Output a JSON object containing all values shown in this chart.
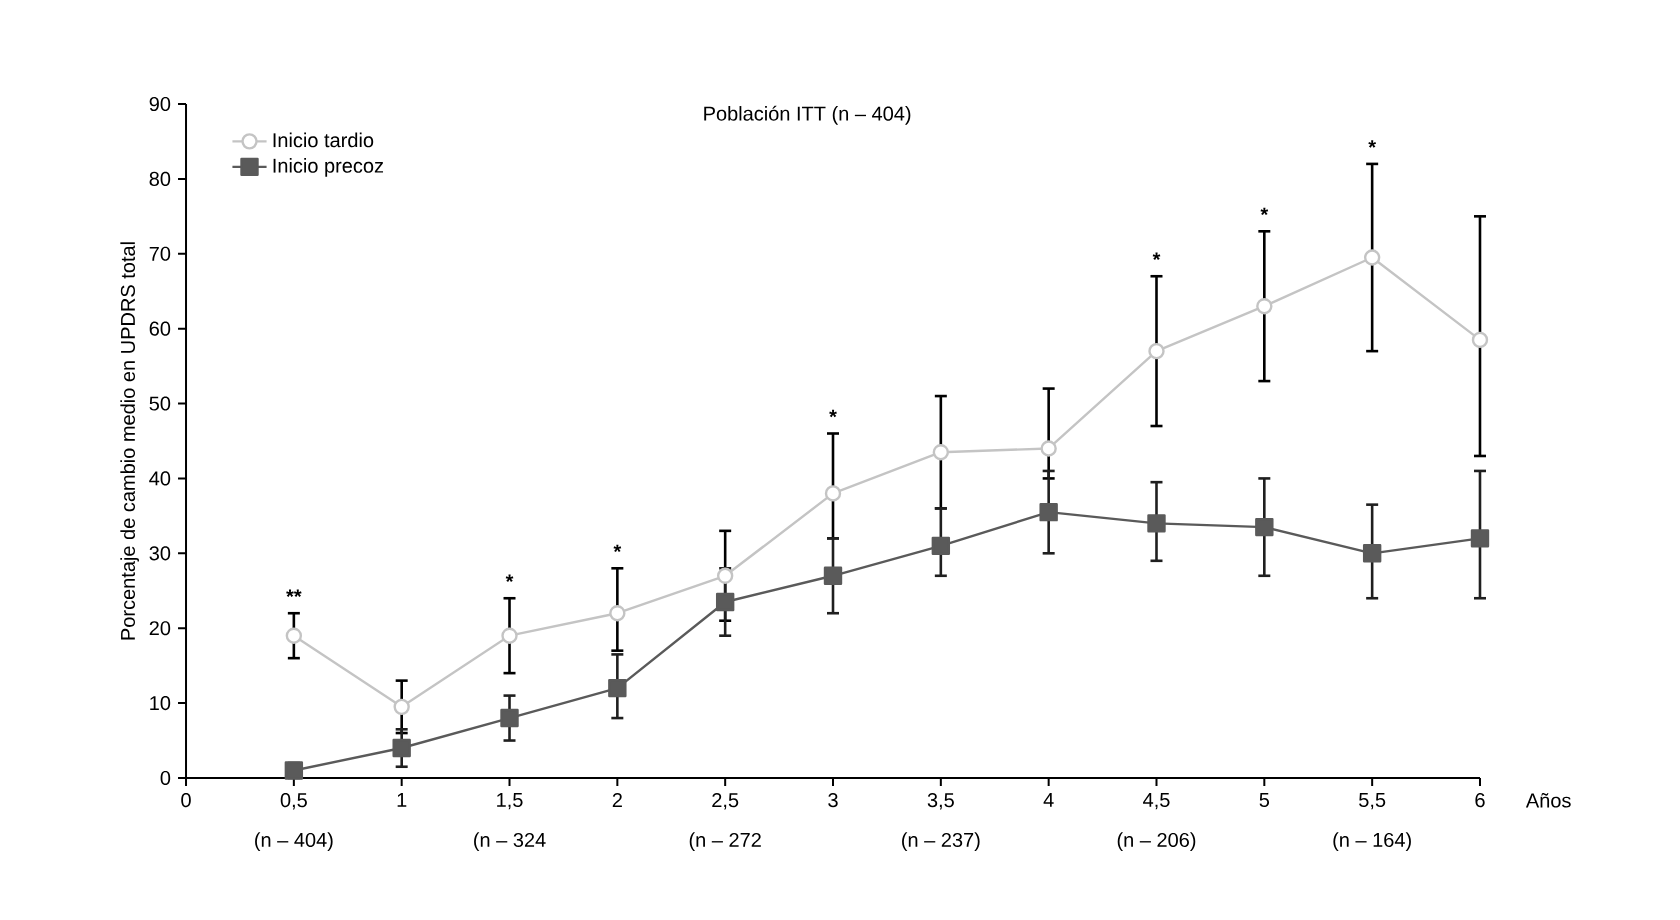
{
  "chart_data": {
    "type": "line",
    "title": "Población ITT (n – 404)",
    "xlabel": "Años",
    "ylabel": "Porcentaje de cambio medio en UPDRS total",
    "x": [
      0.5,
      1,
      1.5,
      2,
      2.5,
      3,
      3.5,
      4,
      4.5,
      5,
      5.5,
      6
    ],
    "series": [
      {
        "name": "Inicio tardio",
        "color": "#c4c4c4",
        "marker": "circle",
        "values": [
          19,
          9.5,
          19,
          22,
          27,
          38,
          43.5,
          44,
          57,
          63,
          69.5,
          58.5
        ],
        "errors": [
          [
            16,
            22
          ],
          [
            6,
            13
          ],
          [
            14,
            24
          ],
          [
            17,
            28
          ],
          [
            21,
            33
          ],
          [
            32,
            46
          ],
          [
            36,
            51
          ],
          [
            40,
            52
          ],
          [
            47,
            67
          ],
          [
            53,
            73
          ],
          [
            57,
            82
          ],
          [
            43,
            75
          ]
        ]
      },
      {
        "name": "Inicio precoz",
        "color": "#5a5a5a",
        "marker": "square",
        "values": [
          1,
          4,
          8,
          12,
          23.5,
          27,
          31,
          35.5,
          34,
          33.5,
          30,
          32
        ],
        "errors": [
          [
            0,
            2
          ],
          [
            1.5,
            6.5
          ],
          [
            5,
            11
          ],
          [
            8,
            16.5
          ],
          [
            19,
            28
          ],
          [
            22,
            32
          ],
          [
            27,
            36
          ],
          [
            30,
            41
          ],
          [
            29,
            39.5
          ],
          [
            27,
            40
          ],
          [
            24,
            36.5
          ],
          [
            24,
            41
          ]
        ]
      }
    ],
    "xlim": [
      0,
      6
    ],
    "ylim": [
      0,
      90
    ],
    "xticks": [
      0,
      {
        "value": 0.5,
        "label": "0,5"
      },
      1,
      {
        "value": 1.5,
        "label": "1,5"
      },
      2,
      {
        "value": 2.5,
        "label": "2,5"
      },
      3,
      {
        "value": 3.5,
        "label": "3,5"
      },
      4,
      {
        "value": 4.5,
        "label": "4,5"
      },
      5,
      {
        "value": 5.5,
        "label": "5,5"
      },
      6
    ],
    "yticks": [
      0,
      10,
      20,
      30,
      40,
      50,
      60,
      70,
      80,
      90
    ],
    "legend": "top left",
    "grid": false,
    "annotations": [
      {
        "text": "**",
        "x": 0.5,
        "y": 23
      },
      {
        "text": "*",
        "x": 1.5,
        "y": 25
      },
      {
        "text": "*",
        "x": 2,
        "y": 29
      },
      {
        "text": "*",
        "x": 3,
        "y": 47
      },
      {
        "text": "*",
        "x": 4.5,
        "y": 68
      },
      {
        "text": "*",
        "x": 5,
        "y": 74
      },
      {
        "text": "*",
        "x": 5.5,
        "y": 83
      },
      "(n – 404)",
      "(n – 324",
      "(n – 272",
      "(n – 237)",
      "(n – 206)",
      "(n – 164)"
    ]
  }
}
